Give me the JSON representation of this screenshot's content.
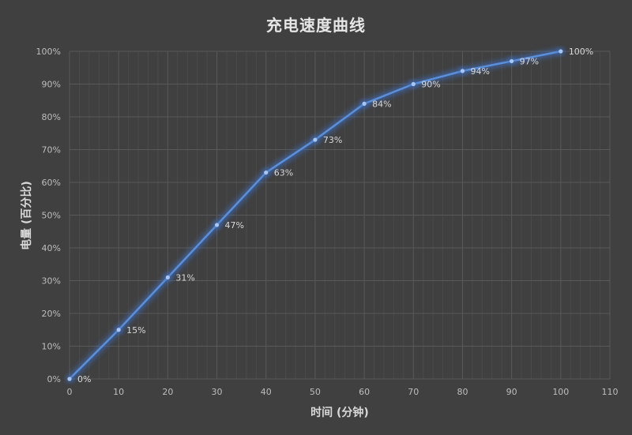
{
  "chart_data": {
    "type": "line",
    "title": "充电速度曲线",
    "xlabel": "时间 (分钟)",
    "ylabel": "电量 (百分比)",
    "x": [
      0,
      10,
      20,
      30,
      40,
      50,
      60,
      70,
      80,
      90,
      100
    ],
    "series": [
      {
        "name": "电量",
        "values": [
          0,
          15,
          31,
          47,
          63,
          73,
          84,
          90,
          94,
          97,
          100
        ],
        "labels": [
          "0%",
          "15%",
          "31%",
          "47%",
          "63%",
          "73%",
          "84%",
          "90%",
          "94%",
          "97%",
          "100%"
        ],
        "color": "#5b8fd9"
      }
    ],
    "xlim": [
      0,
      110
    ],
    "ylim": [
      0,
      100
    ],
    "xticks": [
      "0",
      "10",
      "20",
      "30",
      "40",
      "50",
      "60",
      "70",
      "80",
      "90",
      "100",
      "110"
    ],
    "yticks": [
      "0%",
      "10%",
      "20%",
      "30%",
      "40%",
      "50%",
      "60%",
      "70%",
      "80%",
      "90%",
      "100%"
    ],
    "grid": true,
    "minor_x_grid_step": 2,
    "legend": "none"
  },
  "colors": {
    "background": "#404040",
    "major_grid": "#595959",
    "minor_grid": "#4a4a4a",
    "line": "#5b8fd9",
    "glow": "#3f6fc0",
    "text": "#d9d9d9"
  }
}
